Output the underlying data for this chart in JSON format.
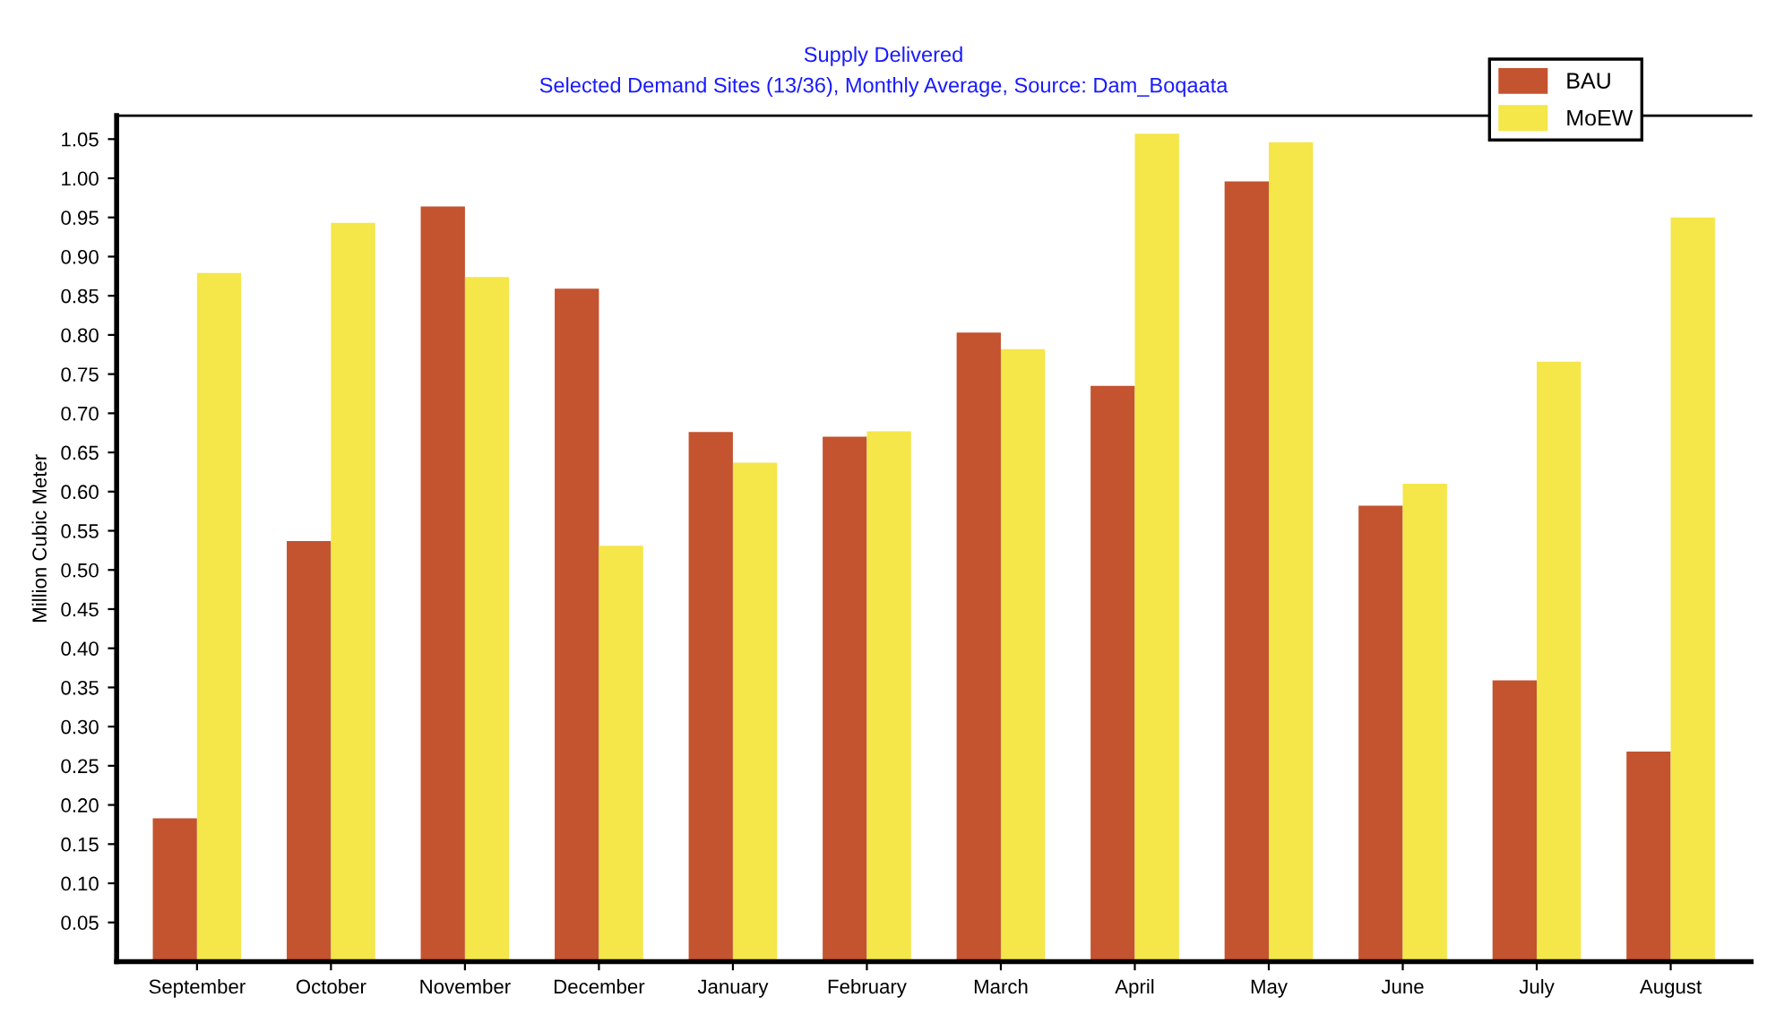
{
  "chart_data": {
    "type": "bar",
    "title": "Supply Delivered",
    "subtitle": "Selected Demand Sites (13/36), Monthly Average, Source: Dam_Boqaata",
    "ylabel": "Million Cubic Meter",
    "categories": [
      "September",
      "October",
      "November",
      "December",
      "January",
      "February",
      "March",
      "April",
      "May",
      "June",
      "July",
      "August"
    ],
    "series": [
      {
        "name": "BAU",
        "color": "#c4532f",
        "values": [
          0.183,
          0.537,
          0.964,
          0.859,
          0.676,
          0.67,
          0.803,
          0.735,
          0.996,
          0.582,
          0.359,
          0.268
        ]
      },
      {
        "name": "MoEW",
        "color": "#f5e64a",
        "values": [
          0.879,
          0.943,
          0.874,
          0.531,
          0.637,
          0.677,
          0.782,
          1.057,
          1.046,
          0.61,
          0.766,
          0.95
        ]
      }
    ],
    "ylim": [
      0,
      1.08
    ],
    "yticks": [
      0.05,
      {
        "value": 0.1,
        "label": "0.10"
      },
      0.15,
      {
        "value": 0.2,
        "label": "0.20"
      },
      0.25,
      {
        "value": 0.3,
        "label": "0.30"
      },
      0.35,
      {
        "value": 0.4,
        "label": "0.40"
      },
      0.45,
      {
        "value": 0.5,
        "label": "0.50"
      },
      0.55,
      {
        "value": 0.6,
        "label": "0.60"
      },
      0.65,
      {
        "value": 0.7,
        "label": "0.70"
      },
      0.75,
      {
        "value": 0.8,
        "label": "0.80"
      },
      0.85,
      {
        "value": 0.9,
        "label": "0.90"
      },
      0.95,
      {
        "value": 1.0,
        "label": "1.00"
      },
      1.05
    ],
    "grid": false,
    "legend": "top right"
  }
}
